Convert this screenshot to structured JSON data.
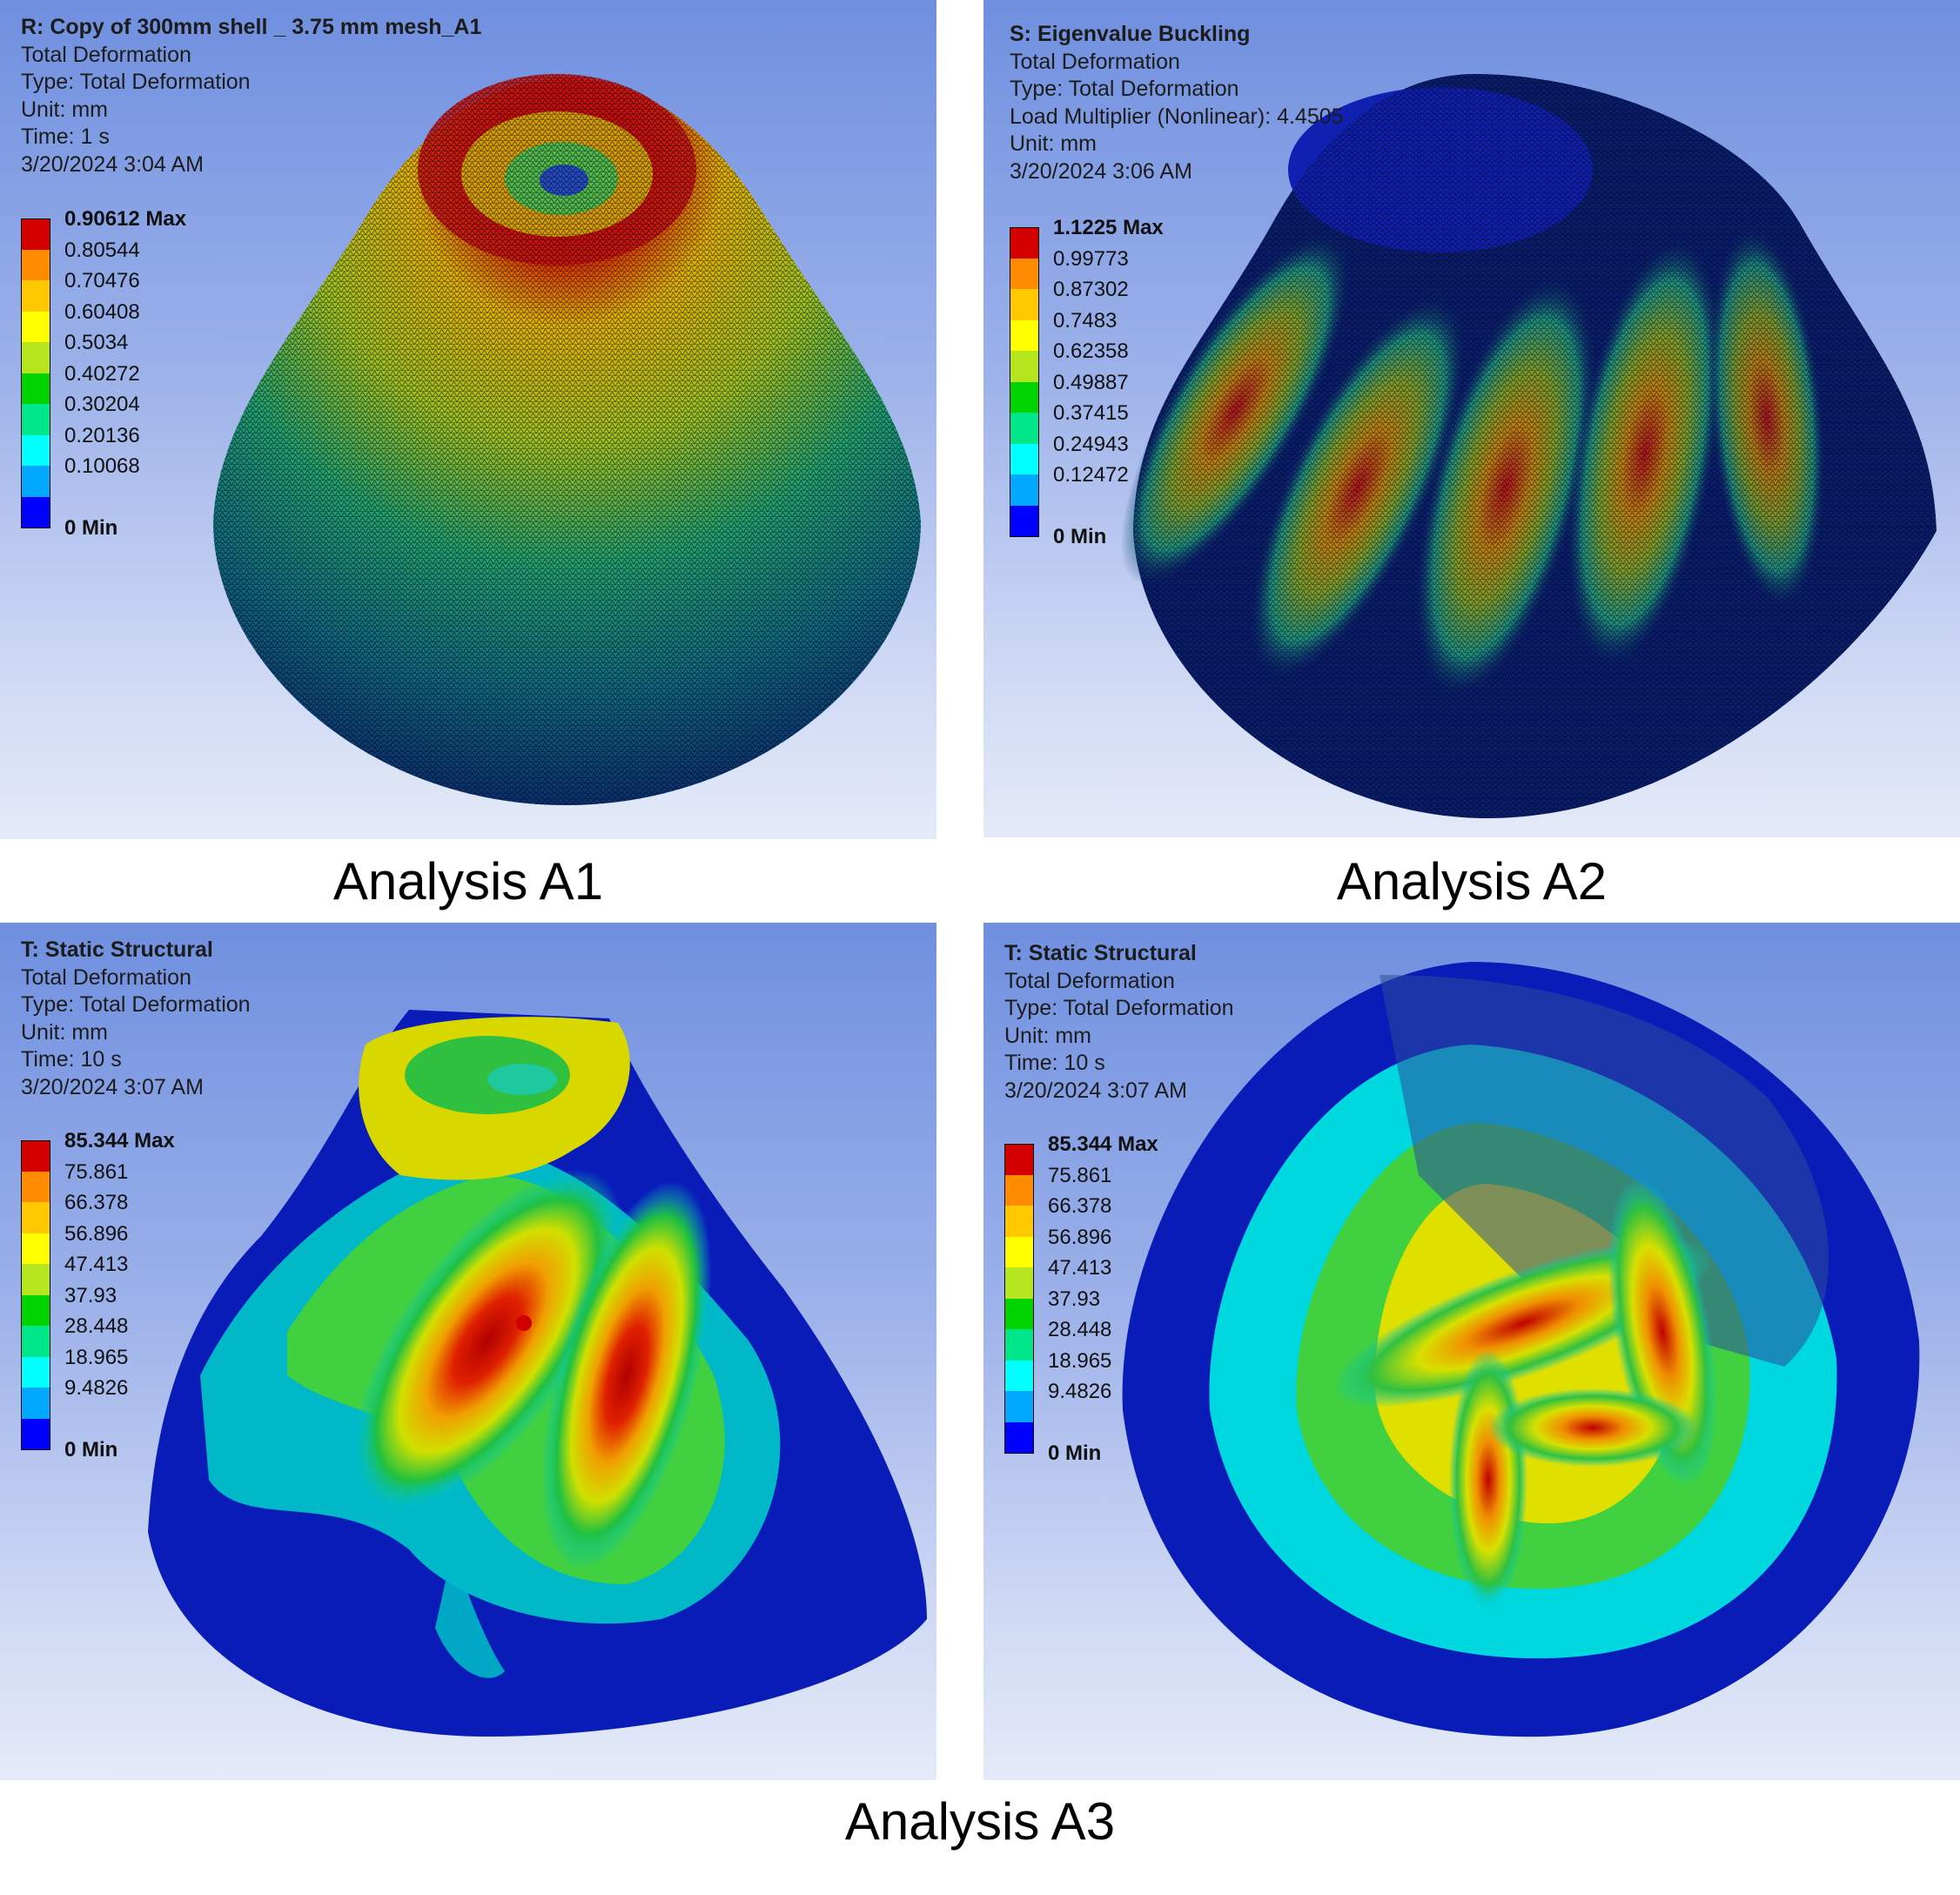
{
  "colors": {
    "legend_bands": [
      "#d40000",
      "#ff8c00",
      "#ffc800",
      "#ffff00",
      "#b5e61d",
      "#00d400",
      "#00e68a",
      "#00ffff",
      "#00a8ff",
      "#0000ff"
    ]
  },
  "panels": [
    {
      "lines": [
        "R: Copy of 300mm shell _ 3.75 mm mesh_A1",
        "Total Deformation",
        "Type: Total Deformation",
        "Unit: mm",
        "Time: 1 s",
        "3/20/2024 3:04 AM"
      ],
      "legend": [
        "0.90612 Max",
        "0.80544",
        "0.70476",
        "0.60408",
        "0.5034",
        "0.40272",
        "0.30204",
        "0.20136",
        "0.10068",
        "0 Min"
      ]
    },
    {
      "lines": [
        "S: Eigenvalue Buckling",
        "Total Deformation",
        "Type: Total Deformation",
        "Load Multiplier (Nonlinear): 4.4505",
        "Unit: mm",
        "3/20/2024 3:06 AM"
      ],
      "legend": [
        "1.1225 Max",
        "0.99773",
        "0.87302",
        "0.7483",
        "0.62358",
        "0.49887",
        "0.37415",
        "0.24943",
        "0.12472",
        "0 Min"
      ]
    },
    {
      "lines": [
        "T: Static Structural",
        "Total Deformation",
        "Type: Total Deformation",
        "Unit: mm",
        "Time: 10 s",
        "3/20/2024 3:07 AM"
      ],
      "legend": [
        "85.344 Max",
        "75.861",
        "66.378",
        "56.896",
        "47.413",
        "37.93",
        "28.448",
        "18.965",
        "9.4826",
        "0 Min"
      ]
    },
    {
      "lines": [
        "T: Static Structural",
        "Total Deformation",
        "Type: Total Deformation",
        "Unit: mm",
        "Time: 10 s",
        "3/20/2024 3:07 AM"
      ],
      "legend": [
        "85.344 Max",
        "75.861",
        "66.378",
        "56.896",
        "47.413",
        "37.93",
        "28.448",
        "18.965",
        "9.4826",
        "0 Min"
      ]
    }
  ],
  "captions": [
    "Analysis A1",
    "Analysis A2",
    "Analysis A3"
  ]
}
